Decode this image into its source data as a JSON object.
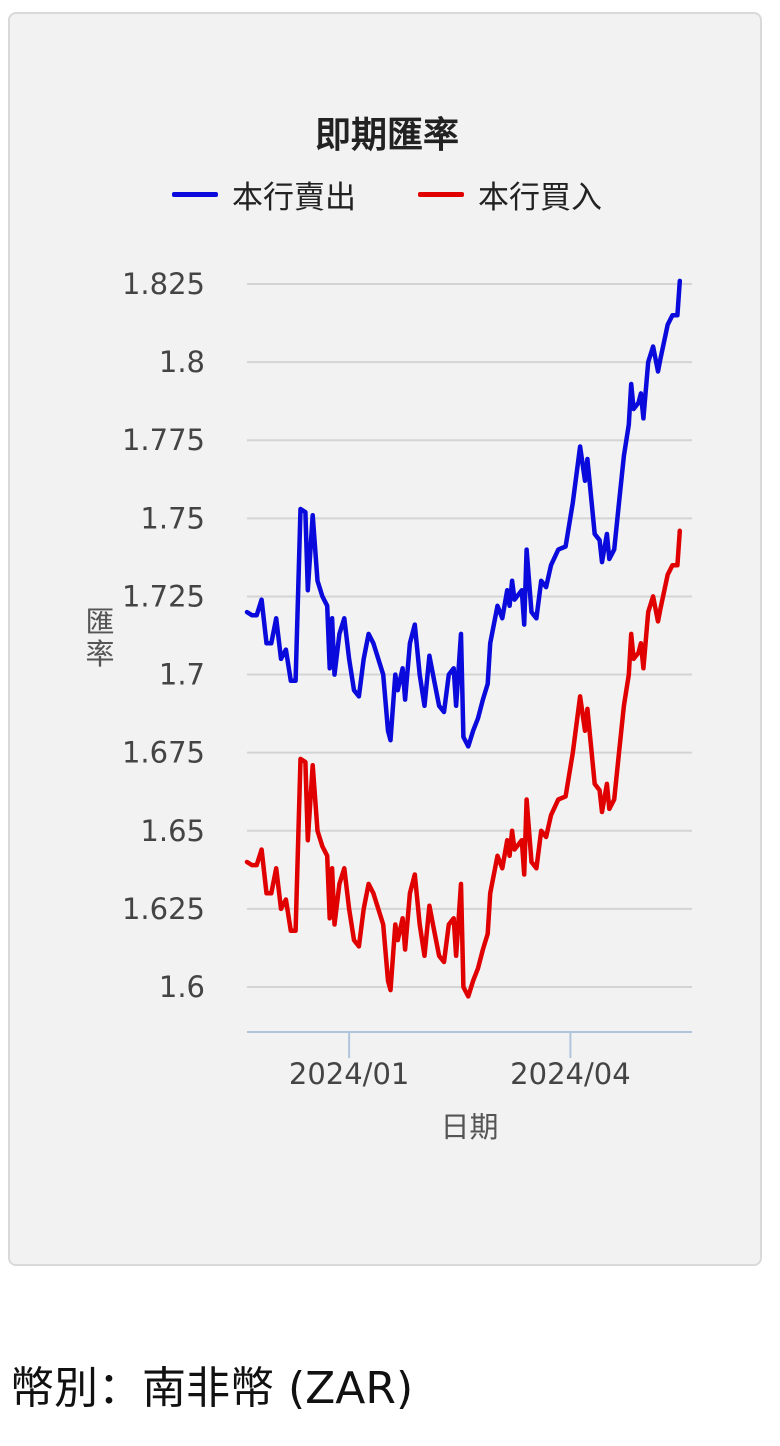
{
  "chart_data": {
    "type": "line",
    "title": "即期匯率",
    "xlabel": "日期",
    "ylabel": "匯率",
    "ylim": [
      1.585,
      1.825
    ],
    "yticks": [
      1.825,
      1.8,
      1.775,
      1.75,
      1.725,
      1.7,
      1.675,
      1.65,
      1.625,
      1.6
    ],
    "ytick_labels": [
      "1.825",
      "1.8",
      "1.775",
      "1.75",
      "1.725",
      "1.7",
      "1.675",
      "1.65",
      "1.625",
      "1.6"
    ],
    "xrange": [
      "2023-11-20",
      "2024-05-21"
    ],
    "xticks": [
      "2024-01-01",
      "2024-04-01"
    ],
    "xtick_labels": [
      "2024/01",
      "2024/04"
    ],
    "grid": true,
    "legend": "top",
    "series": [
      {
        "name": "本行賣出",
        "color": "#0a0adc",
        "points": [
          [
            "2023-11-20",
            1.72
          ],
          [
            "2023-11-22",
            1.719
          ],
          [
            "2023-11-24",
            1.719
          ],
          [
            "2023-11-26",
            1.724
          ],
          [
            "2023-11-28",
            1.71
          ],
          [
            "2023-11-30",
            1.71
          ],
          [
            "2023-12-02",
            1.718
          ],
          [
            "2023-12-04",
            1.705
          ],
          [
            "2023-12-06",
            1.708
          ],
          [
            "2023-12-08",
            1.698
          ],
          [
            "2023-12-10",
            1.698
          ],
          [
            "2023-12-12",
            1.753
          ],
          [
            "2023-12-14",
            1.752
          ],
          [
            "2023-12-15",
            1.727
          ],
          [
            "2023-12-17",
            1.751
          ],
          [
            "2023-12-19",
            1.73
          ],
          [
            "2023-12-21",
            1.725
          ],
          [
            "2023-12-23",
            1.722
          ],
          [
            "2023-12-24",
            1.702
          ],
          [
            "2023-12-25",
            1.718
          ],
          [
            "2023-12-26",
            1.7
          ],
          [
            "2023-12-28",
            1.713
          ],
          [
            "2023-12-30",
            1.718
          ],
          [
            "2024-01-01",
            1.705
          ],
          [
            "2024-01-03",
            1.695
          ],
          [
            "2024-01-05",
            1.693
          ],
          [
            "2024-01-07",
            1.705
          ],
          [
            "2024-01-09",
            1.713
          ],
          [
            "2024-01-11",
            1.71
          ],
          [
            "2024-01-13",
            1.705
          ],
          [
            "2024-01-15",
            1.7
          ],
          [
            "2024-01-17",
            1.682
          ],
          [
            "2024-01-18",
            1.679
          ],
          [
            "2024-01-20",
            1.7
          ],
          [
            "2024-01-21",
            1.695
          ],
          [
            "2024-01-23",
            1.702
          ],
          [
            "2024-01-24",
            1.692
          ],
          [
            "2024-01-26",
            1.71
          ],
          [
            "2024-01-28",
            1.716
          ],
          [
            "2024-01-30",
            1.7
          ],
          [
            "2024-02-01",
            1.69
          ],
          [
            "2024-02-03",
            1.706
          ],
          [
            "2024-02-05",
            1.698
          ],
          [
            "2024-02-07",
            1.69
          ],
          [
            "2024-02-09",
            1.688
          ],
          [
            "2024-02-11",
            1.7
          ],
          [
            "2024-02-13",
            1.702
          ],
          [
            "2024-02-14",
            1.69
          ],
          [
            "2024-02-16",
            1.713
          ],
          [
            "2024-02-17",
            1.68
          ],
          [
            "2024-02-19",
            1.677
          ],
          [
            "2024-02-21",
            1.682
          ],
          [
            "2024-02-23",
            1.686
          ],
          [
            "2024-02-25",
            1.692
          ],
          [
            "2024-02-27",
            1.697
          ],
          [
            "2024-02-28",
            1.71
          ],
          [
            "2024-03-02",
            1.722
          ],
          [
            "2024-03-04",
            1.718
          ],
          [
            "2024-03-06",
            1.727
          ],
          [
            "2024-03-07",
            1.722
          ],
          [
            "2024-03-08",
            1.73
          ],
          [
            "2024-03-09",
            1.724
          ],
          [
            "2024-03-12",
            1.727
          ],
          [
            "2024-03-13",
            1.716
          ],
          [
            "2024-03-14",
            1.74
          ],
          [
            "2024-03-16",
            1.72
          ],
          [
            "2024-03-18",
            1.718
          ],
          [
            "2024-03-20",
            1.73
          ],
          [
            "2024-03-22",
            1.728
          ],
          [
            "2024-03-24",
            1.735
          ],
          [
            "2024-03-27",
            1.74
          ],
          [
            "2024-03-30",
            1.741
          ],
          [
            "2024-04-02",
            1.755
          ],
          [
            "2024-04-05",
            1.773
          ],
          [
            "2024-04-07",
            1.762
          ],
          [
            "2024-04-08",
            1.769
          ],
          [
            "2024-04-11",
            1.745
          ],
          [
            "2024-04-13",
            1.743
          ],
          [
            "2024-04-14",
            1.736
          ],
          [
            "2024-04-16",
            1.745
          ],
          [
            "2024-04-17",
            1.737
          ],
          [
            "2024-04-19",
            1.74
          ],
          [
            "2024-04-21",
            1.755
          ],
          [
            "2024-04-23",
            1.77
          ],
          [
            "2024-04-25",
            1.78
          ],
          [
            "2024-04-26",
            1.793
          ],
          [
            "2024-04-27",
            1.785
          ],
          [
            "2024-04-29",
            1.787
          ],
          [
            "2024-04-30",
            1.79
          ],
          [
            "2024-05-01",
            1.782
          ],
          [
            "2024-05-03",
            1.8
          ],
          [
            "2024-05-05",
            1.805
          ],
          [
            "2024-05-07",
            1.797
          ],
          [
            "2024-05-08",
            1.801
          ],
          [
            "2024-05-11",
            1.812
          ],
          [
            "2024-05-13",
            1.815
          ],
          [
            "2024-05-15",
            1.815
          ],
          [
            "2024-05-16",
            1.826
          ]
        ]
      },
      {
        "name": "本行買入",
        "color": "#e00000",
        "points": [
          [
            "2023-11-20",
            1.64
          ],
          [
            "2023-11-22",
            1.639
          ],
          [
            "2023-11-24",
            1.639
          ],
          [
            "2023-11-26",
            1.644
          ],
          [
            "2023-11-28",
            1.63
          ],
          [
            "2023-11-30",
            1.63
          ],
          [
            "2023-12-02",
            1.638
          ],
          [
            "2023-12-04",
            1.625
          ],
          [
            "2023-12-06",
            1.628
          ],
          [
            "2023-12-08",
            1.618
          ],
          [
            "2023-12-10",
            1.618
          ],
          [
            "2023-12-12",
            1.673
          ],
          [
            "2023-12-14",
            1.672
          ],
          [
            "2023-12-15",
            1.647
          ],
          [
            "2023-12-17",
            1.671
          ],
          [
            "2023-12-19",
            1.65
          ],
          [
            "2023-12-21",
            1.645
          ],
          [
            "2023-12-23",
            1.642
          ],
          [
            "2023-12-24",
            1.622
          ],
          [
            "2023-12-25",
            1.638
          ],
          [
            "2023-12-26",
            1.62
          ],
          [
            "2023-12-28",
            1.633
          ],
          [
            "2023-12-30",
            1.638
          ],
          [
            "2024-01-01",
            1.625
          ],
          [
            "2024-01-03",
            1.615
          ],
          [
            "2024-01-05",
            1.613
          ],
          [
            "2024-01-07",
            1.625
          ],
          [
            "2024-01-09",
            1.633
          ],
          [
            "2024-01-11",
            1.63
          ],
          [
            "2024-01-13",
            1.625
          ],
          [
            "2024-01-15",
            1.62
          ],
          [
            "2024-01-17",
            1.602
          ],
          [
            "2024-01-18",
            1.599
          ],
          [
            "2024-01-20",
            1.62
          ],
          [
            "2024-01-21",
            1.615
          ],
          [
            "2024-01-23",
            1.622
          ],
          [
            "2024-01-24",
            1.612
          ],
          [
            "2024-01-26",
            1.63
          ],
          [
            "2024-01-28",
            1.636
          ],
          [
            "2024-01-30",
            1.62
          ],
          [
            "2024-02-01",
            1.61
          ],
          [
            "2024-02-03",
            1.626
          ],
          [
            "2024-02-05",
            1.618
          ],
          [
            "2024-02-07",
            1.61
          ],
          [
            "2024-02-09",
            1.608
          ],
          [
            "2024-02-11",
            1.62
          ],
          [
            "2024-02-13",
            1.622
          ],
          [
            "2024-02-14",
            1.61
          ],
          [
            "2024-02-16",
            1.633
          ],
          [
            "2024-02-17",
            1.6
          ],
          [
            "2024-02-19",
            1.597
          ],
          [
            "2024-02-21",
            1.602
          ],
          [
            "2024-02-23",
            1.606
          ],
          [
            "2024-02-25",
            1.612
          ],
          [
            "2024-02-27",
            1.617
          ],
          [
            "2024-02-28",
            1.63
          ],
          [
            "2024-03-02",
            1.642
          ],
          [
            "2024-03-04",
            1.638
          ],
          [
            "2024-03-06",
            1.647
          ],
          [
            "2024-03-07",
            1.642
          ],
          [
            "2024-03-08",
            1.65
          ],
          [
            "2024-03-09",
            1.644
          ],
          [
            "2024-03-12",
            1.647
          ],
          [
            "2024-03-13",
            1.636
          ],
          [
            "2024-03-14",
            1.66
          ],
          [
            "2024-03-16",
            1.64
          ],
          [
            "2024-03-18",
            1.638
          ],
          [
            "2024-03-20",
            1.65
          ],
          [
            "2024-03-22",
            1.648
          ],
          [
            "2024-03-24",
            1.655
          ],
          [
            "2024-03-27",
            1.66
          ],
          [
            "2024-03-30",
            1.661
          ],
          [
            "2024-04-02",
            1.675
          ],
          [
            "2024-04-05",
            1.693
          ],
          [
            "2024-04-07",
            1.682
          ],
          [
            "2024-04-08",
            1.689
          ],
          [
            "2024-04-11",
            1.665
          ],
          [
            "2024-04-13",
            1.663
          ],
          [
            "2024-04-14",
            1.656
          ],
          [
            "2024-04-16",
            1.665
          ],
          [
            "2024-04-17",
            1.657
          ],
          [
            "2024-04-19",
            1.66
          ],
          [
            "2024-04-21",
            1.675
          ],
          [
            "2024-04-23",
            1.69
          ],
          [
            "2024-04-25",
            1.7
          ],
          [
            "2024-04-26",
            1.713
          ],
          [
            "2024-04-27",
            1.705
          ],
          [
            "2024-04-29",
            1.707
          ],
          [
            "2024-04-30",
            1.71
          ],
          [
            "2024-05-01",
            1.702
          ],
          [
            "2024-05-03",
            1.72
          ],
          [
            "2024-05-05",
            1.725
          ],
          [
            "2024-05-07",
            1.717
          ],
          [
            "2024-05-08",
            1.721
          ],
          [
            "2024-05-11",
            1.732
          ],
          [
            "2024-05-13",
            1.735
          ],
          [
            "2024-05-15",
            1.735
          ],
          [
            "2024-05-16",
            1.746
          ]
        ]
      }
    ]
  },
  "footer": {
    "currency": "幣別：南非幣 (ZAR)"
  }
}
